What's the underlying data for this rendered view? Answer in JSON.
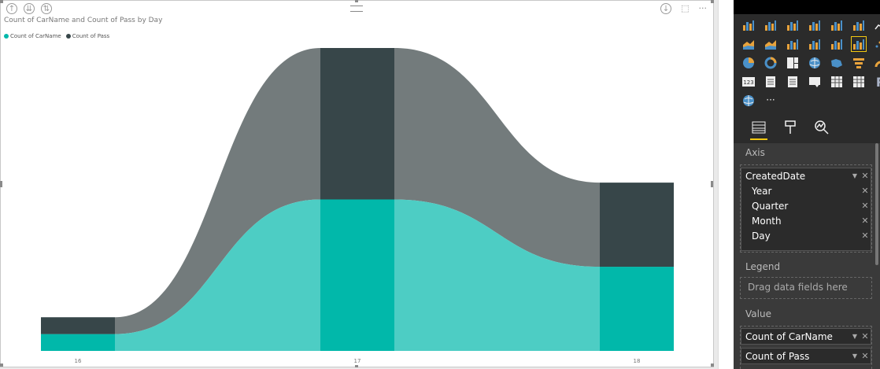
{
  "visual": {
    "title": "Count of CarName and Count of Pass by Day",
    "legend": [
      {
        "name": "Count of CarName",
        "color": "#01b8aa"
      },
      {
        "name": "Count of Pass",
        "color": "#374649"
      }
    ],
    "header_icons": [
      "drill-up-icon",
      "drill-down-all-icon",
      "expand-next-level-icon"
    ],
    "action_icons": [
      "drill-down-toggle-icon",
      "focus-mode-icon",
      "more-options-icon"
    ]
  },
  "chart_data": {
    "type": "area",
    "stacked": true,
    "categories": [
      "16",
      "17",
      "18"
    ],
    "series": [
      {
        "name": "Count of CarName",
        "color": "#01b8aa",
        "values": [
          1,
          9,
          5
        ]
      },
      {
        "name": "Count of Pass",
        "color": "#374649",
        "values": [
          1,
          9,
          5
        ]
      }
    ],
    "ylim": [
      0,
      18
    ],
    "grid": false,
    "legend_position": "top-left"
  },
  "panel": {
    "viz_icons": [
      "stacked-bar-icon",
      "stacked-column-icon",
      "clustered-bar-icon",
      "clustered-column-icon",
      "100-bar-icon",
      "100-column-icon",
      "",
      "line-chart-icon",
      "area-chart-icon",
      "stacked-area-icon",
      "line-column-icon",
      "line-clustered-column-icon",
      "ribbon-chart-icon",
      "",
      "waterfall-icon",
      "scatter-icon",
      "pie-icon",
      "donut-icon",
      "treemap-icon",
      "map-icon",
      "",
      "filled-map-icon",
      "funnel-icon",
      "gauge-icon",
      "card-icon",
      "multirow-card-icon",
      "kpi-icon",
      "",
      "slicer-icon",
      "table-icon",
      "matrix-icon",
      "r-visual-icon",
      "globe-icon",
      "more-visuals-icon",
      ""
    ],
    "selected_viz_index": 12,
    "more_label": "···",
    "r_label": "R",
    "card_label": "123",
    "tabs": [
      "fields-tab-icon",
      "format-tab-icon",
      "analytics-tab-icon"
    ],
    "axis": {
      "label": "Axis",
      "field": "CreatedDate",
      "hierarchy": [
        "Year",
        "Quarter",
        "Month",
        "Day"
      ]
    },
    "legend_well": {
      "label": "Legend",
      "placeholder": "Drag data fields here"
    },
    "value_well": {
      "label": "Value",
      "fields": [
        "Count of CarName",
        "Count of Pass"
      ]
    }
  }
}
